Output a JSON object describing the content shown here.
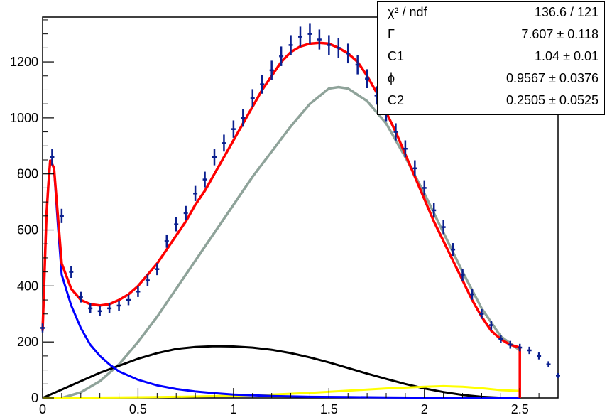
{
  "title_fragment": "",
  "stats": [
    {
      "label": "χ² / ndf",
      "value": "136.6 / 121"
    },
    {
      "label": "Γ",
      "value": "7.607 ± 0.118"
    },
    {
      "label": "C1",
      "value": "1.04 ± 0.01"
    },
    {
      "label": "ϕ",
      "value": "0.9567 ± 0.0376"
    },
    {
      "label": "C2",
      "value": "0.2505 ± 0.0525"
    }
  ],
  "chart_data": {
    "type": "line",
    "xlim": [
      0,
      2.7
    ],
    "ylim": [
      0,
      1360
    ],
    "x_ticks": [
      "0",
      "0.5",
      "1",
      "1.5",
      "2",
      "2.5"
    ],
    "x_tick_values": [
      0,
      0.5,
      1,
      1.5,
      2,
      2.5
    ],
    "y_ticks": [
      "0",
      "200",
      "400",
      "600",
      "800",
      "1000",
      "1200"
    ],
    "y_tick_values": [
      0,
      200,
      400,
      600,
      800,
      1000,
      1200
    ],
    "colors": {
      "data": "#0a1f8f",
      "total": "#ff0000",
      "peak": "#0000ff",
      "broad": "#8fa39a",
      "black_comp": "#000000",
      "yellow_comp": "#ffff00"
    },
    "series": [
      {
        "key": "data",
        "x": [
          0.0,
          0.05,
          0.1,
          0.15,
          0.2,
          0.25,
          0.3,
          0.35,
          0.4,
          0.45,
          0.5,
          0.55,
          0.6,
          0.65,
          0.7,
          0.75,
          0.8,
          0.85,
          0.9,
          0.95,
          1.0,
          1.05,
          1.1,
          1.15,
          1.2,
          1.25,
          1.3,
          1.35,
          1.4,
          1.45,
          1.5,
          1.55,
          1.6,
          1.65,
          1.7,
          1.75,
          1.8,
          1.85,
          1.9,
          1.95,
          2.0,
          2.05,
          2.1,
          2.15,
          2.2,
          2.25,
          2.3,
          2.35,
          2.4,
          2.45,
          2.5,
          2.55,
          2.6,
          2.65,
          2.7
        ],
        "y": [
          250,
          860,
          650,
          450,
          360,
          320,
          310,
          320,
          330,
          350,
          380,
          420,
          460,
          560,
          620,
          660,
          730,
          780,
          860,
          910,
          960,
          1000,
          1070,
          1120,
          1170,
          1220,
          1260,
          1290,
          1300,
          1280,
          1260,
          1250,
          1230,
          1190,
          1140,
          1080,
          1020,
          950,
          890,
          820,
          750,
          670,
          610,
          530,
          440,
          370,
          300,
          260,
          210,
          190,
          180,
          170,
          150,
          120,
          80
        ]
      },
      {
        "key": "total",
        "x": [
          0.0,
          0.02,
          0.03,
          0.04,
          0.06,
          0.08,
          0.1,
          0.15,
          0.2,
          0.25,
          0.3,
          0.35,
          0.4,
          0.45,
          0.5,
          0.55,
          0.6,
          0.65,
          0.7,
          0.75,
          0.8,
          0.85,
          0.9,
          0.95,
          1.0,
          1.05,
          1.1,
          1.15,
          1.2,
          1.25,
          1.3,
          1.35,
          1.4,
          1.45,
          1.5,
          1.55,
          1.6,
          1.65,
          1.7,
          1.75,
          1.8,
          1.85,
          1.9,
          1.95,
          2.0,
          2.05,
          2.1,
          2.15,
          2.2,
          2.25,
          2.3,
          2.35,
          2.4,
          2.45,
          2.5,
          2.5
        ],
        "y": [
          240,
          650,
          760,
          850,
          820,
          650,
          480,
          390,
          350,
          335,
          330,
          335,
          350,
          370,
          400,
          440,
          480,
          530,
          580,
          630,
          690,
          740,
          800,
          860,
          920,
          980,
          1040,
          1100,
          1150,
          1200,
          1235,
          1255,
          1265,
          1268,
          1265,
          1250,
          1230,
          1200,
          1150,
          1090,
          1020,
          950,
          870,
          790,
          710,
          630,
          560,
          490,
          420,
          350,
          290,
          240,
          210,
          190,
          180,
          0
        ]
      },
      {
        "key": "peak",
        "x": [
          0.0,
          0.02,
          0.03,
          0.04,
          0.06,
          0.08,
          0.1,
          0.15,
          0.2,
          0.25,
          0.3,
          0.35,
          0.4,
          0.5,
          0.6,
          0.7,
          0.8,
          0.9,
          1.0,
          1.2,
          1.4,
          1.6,
          1.8,
          2.0,
          2.2,
          2.5
        ],
        "y": [
          240,
          650,
          760,
          850,
          820,
          620,
          440,
          330,
          250,
          190,
          150,
          120,
          95,
          65,
          45,
          32,
          23,
          17,
          12,
          7,
          4,
          3,
          2,
          1,
          1,
          0
        ]
      },
      {
        "key": "broad",
        "x": [
          0.1,
          0.2,
          0.3,
          0.4,
          0.5,
          0.6,
          0.7,
          0.8,
          0.9,
          1.0,
          1.1,
          1.2,
          1.3,
          1.4,
          1.5,
          1.55,
          1.6,
          1.7,
          1.8,
          1.9,
          2.0,
          2.1,
          2.2,
          2.3,
          2.4,
          2.5
        ],
        "y": [
          0,
          20,
          60,
          120,
          200,
          290,
          390,
          490,
          590,
          690,
          790,
          880,
          970,
          1050,
          1105,
          1110,
          1105,
          1060,
          980,
          860,
          730,
          590,
          450,
          320,
          220,
          170
        ]
      },
      {
        "key": "black_comp",
        "x": [
          0.0,
          0.1,
          0.2,
          0.3,
          0.4,
          0.5,
          0.6,
          0.7,
          0.8,
          0.9,
          1.0,
          1.1,
          1.2,
          1.3,
          1.4,
          1.5,
          1.6,
          1.7,
          1.8,
          1.9,
          2.0,
          2.1,
          2.2,
          2.3,
          2.4,
          2.5
        ],
        "y": [
          0,
          30,
          60,
          90,
          115,
          140,
          160,
          175,
          182,
          185,
          184,
          180,
          172,
          160,
          145,
          127,
          107,
          87,
          68,
          50,
          34,
          21,
          11,
          4,
          1,
          0
        ]
      },
      {
        "key": "yellow_comp",
        "x": [
          0.0,
          0.2,
          0.4,
          0.6,
          0.8,
          1.0,
          1.2,
          1.4,
          1.6,
          1.8,
          2.0,
          2.1,
          2.2,
          2.3,
          2.4,
          2.5
        ],
        "y": [
          0,
          1,
          2,
          3,
          5,
          8,
          12,
          18,
          26,
          34,
          40,
          42,
          40,
          35,
          28,
          25
        ]
      }
    ]
  }
}
